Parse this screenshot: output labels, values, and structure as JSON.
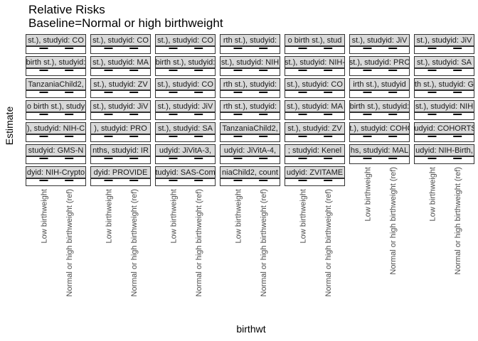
{
  "chart_data": {
    "type": "scatter",
    "title": "Relative Risks",
    "subtitle": "Baseline=Normal or high birthweight",
    "xlabel": "birthwt",
    "ylabel": "Estimate",
    "categories": [
      "Low birthweight",
      "Normal or high birthweight (ref)"
    ],
    "grid": false,
    "facet_rows": 7,
    "facet_cols": 7,
    "panels": [
      {
        "strip": "st.), studyid: CO"
      },
      {
        "strip": "st.), studyid: CO"
      },
      {
        "strip": "st.), studyid: CO"
      },
      {
        "strip": "rth st.), studyid:"
      },
      {
        "strip": "o birth st.), stud"
      },
      {
        "strip": "st.), studyid: JiV"
      },
      {
        "strip": "st.), studyid: JiV"
      },
      {
        "strip": "birth st.), studyid:"
      },
      {
        "strip": "st.), studyid: MA"
      },
      {
        "strip": "birth st.), studyid:"
      },
      {
        "strip": "st.), studyid: NIH"
      },
      {
        "strip": "st.), studyid: NIH-"
      },
      {
        "strip": "st.), studyid: PRC"
      },
      {
        "strip": "st.), studyid: SA"
      },
      {
        "strip": "TanzaniaChild2,"
      },
      {
        "strip": "st.), studyid: ZV"
      },
      {
        "strip": "st.), studyid: CO"
      },
      {
        "strip": "rth st.), studyid:"
      },
      {
        "strip": "st.), studyid: CO"
      },
      {
        "strip": "irth st.), studyid"
      },
      {
        "strip": "th st.), studyid: G"
      },
      {
        "strip": "o birth st.), study"
      },
      {
        "strip": "st.), studyid: JiV"
      },
      {
        "strip": "st.), studyid: JiV"
      },
      {
        "strip": "rth st.), studyid:"
      },
      {
        "strip": "st.), studyid: MA"
      },
      {
        "strip": "birth st.), studyid:"
      },
      {
        "strip": "st.), studyid: NIH"
      },
      {
        "strip": "), studyid: NIH-C"
      },
      {
        "strip": "), studyid: PRO"
      },
      {
        "strip": "st.), studyid: SA"
      },
      {
        "strip": "TanzaniaChild2,"
      },
      {
        "strip": "st.), studyid: ZV"
      },
      {
        "strip": "st.), studyid: COHO"
      },
      {
        "strip": "tudyid: COHORTS"
      },
      {
        "strip": "studyid: GMS-N"
      },
      {
        "strip": "nths, studyid: IR"
      },
      {
        "strip": "udyid: JiVitA-3,"
      },
      {
        "strip": "udyid: JiVitA-4,"
      },
      {
        "strip": "; studyid: Kenel"
      },
      {
        "strip": "hs, studyid: MAL"
      },
      {
        "strip": "udyid: NIH-Birth,"
      },
      {
        "strip": "dyid: NIH-Crypto"
      },
      {
        "strip": "dyid: PROVIDE"
      },
      {
        "strip": "tudyid: SAS-Com"
      },
      {
        "strip": "niaChild2, count"
      },
      {
        "strip": "udyid: ZVITAME"
      }
    ]
  }
}
